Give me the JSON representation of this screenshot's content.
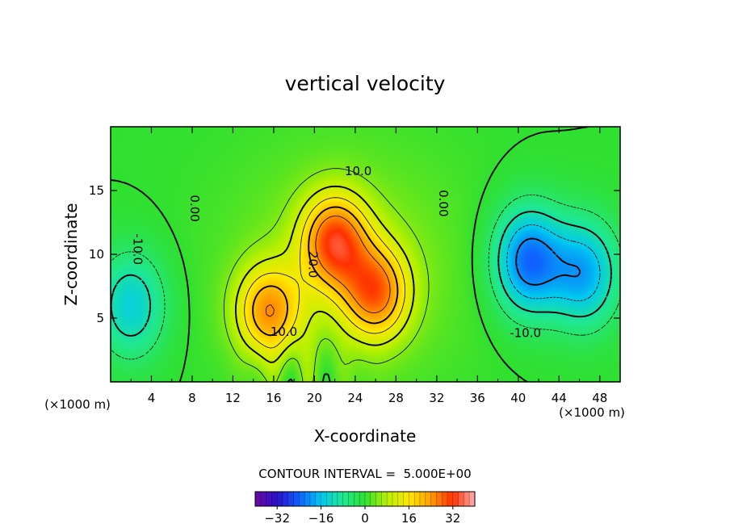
{
  "chart_data": {
    "type": "contour",
    "title": "vertical velocity",
    "xlabel": "X-coordinate",
    "ylabel": "Z-coordinate",
    "x_unit_label_left": "(×1000 m)",
    "x_unit_label_right": "(×1000 m)",
    "xlim": [
      0,
      50
    ],
    "ylim": [
      0,
      20
    ],
    "x_ticks": [
      4,
      8,
      12,
      16,
      20,
      24,
      28,
      32,
      36,
      40,
      44,
      48
    ],
    "y_ticks": [
      5,
      10,
      15
    ],
    "contour_interval_text": "CONTOUR INTERVAL =  5.000E+00",
    "colorbar": {
      "range": [
        -40,
        40
      ],
      "tick_values": [
        -32,
        -16,
        0,
        16,
        32
      ],
      "tick_labels": [
        "−32",
        "−16",
        "0",
        "16",
        "32"
      ]
    },
    "contour_labels": [
      {
        "text": "10.0",
        "x": 24.3,
        "y": 16.5
      },
      {
        "text": "20.0",
        "x": 19.8,
        "y": 9.2
      },
      {
        "text": "10.0",
        "x": 17.0,
        "y": 3.9
      },
      {
        "text": "0.00",
        "x": 8.2,
        "y": 13.6
      },
      {
        "text": "0.00",
        "x": 32.6,
        "y": 14.0
      },
      {
        "text": "-10.0",
        "x": 2.6,
        "y": 10.4
      },
      {
        "text": "-10.0",
        "x": 40.7,
        "y": 3.8
      }
    ],
    "field_features": [
      {
        "kind": "updraft",
        "x": 22,
        "y": 11,
        "amplitude": 27
      },
      {
        "kind": "updraft",
        "x": 26,
        "y": 7,
        "amplitude": 24
      },
      {
        "kind": "updraft",
        "x": 15.5,
        "y": 5.5,
        "amplitude": 22
      },
      {
        "kind": "downdraft",
        "x": 41,
        "y": 9.5,
        "amplitude": -23
      },
      {
        "kind": "downdraft",
        "x": 46.5,
        "y": 8.5,
        "amplitude": -18
      },
      {
        "kind": "downdraft",
        "x": 2,
        "y": 6,
        "amplitude": -14
      }
    ]
  }
}
